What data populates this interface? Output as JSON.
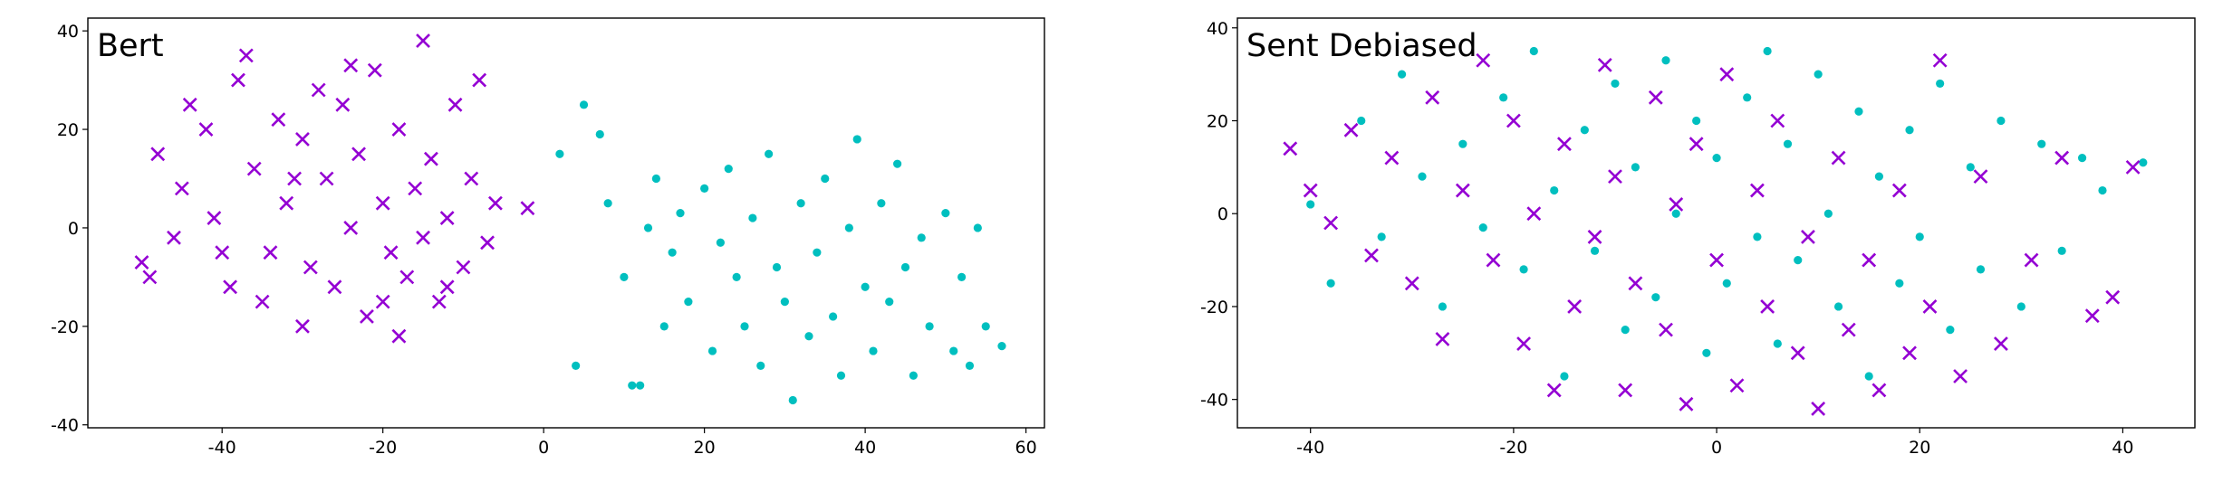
{
  "chart_data": [
    {
      "type": "scatter",
      "title": "Bert",
      "xlim": [
        -56.7,
        62.3
      ],
      "ylim": [
        -40.6,
        42.6
      ],
      "xticks": [
        -40,
        -20,
        0,
        20,
        40,
        60
      ],
      "yticks": [
        -40,
        -20,
        0,
        20,
        40
      ],
      "series": [
        {
          "color": "#9400d3",
          "marker": "x",
          "x": [
            -48,
            -45,
            -42,
            -40,
            -38,
            -36,
            -35,
            -33,
            -32,
            -30,
            -29,
            -28,
            -27,
            -26,
            -25,
            -24,
            -23,
            -22,
            -21,
            -20,
            -19,
            -18,
            -17,
            -16,
            -15,
            -14,
            -13,
            -12,
            -11,
            -10,
            -9,
            -8,
            -7,
            -6,
            -46,
            -44,
            -41,
            -39,
            -37,
            -34,
            -31,
            -30,
            -24,
            -20,
            -18,
            -15,
            -12,
            -50,
            -49,
            -2
          ],
          "y": [
            15,
            8,
            20,
            -5,
            30,
            12,
            -15,
            22,
            5,
            18,
            -8,
            28,
            10,
            -12,
            25,
            0,
            15,
            -18,
            32,
            5,
            -5,
            20,
            -10,
            8,
            -2,
            14,
            -15,
            2,
            25,
            -8,
            10,
            30,
            -3,
            5,
            -2,
            25,
            2,
            -12,
            35,
            -5,
            10,
            -20,
            33,
            -15,
            -22,
            38,
            -12,
            -7,
            -10,
            4
          ]
        },
        {
          "color": "#00bfbf",
          "marker": "o",
          "x": [
            2,
            4,
            5,
            7,
            8,
            10,
            12,
            13,
            14,
            15,
            16,
            17,
            18,
            20,
            21,
            22,
            23,
            24,
            25,
            26,
            27,
            28,
            29,
            30,
            31,
            32,
            33,
            34,
            35,
            36,
            37,
            38,
            39,
            40,
            41,
            42,
            43,
            44,
            45,
            46,
            47,
            48,
            50,
            51,
            52,
            53,
            54,
            55,
            57,
            11
          ],
          "y": [
            15,
            -28,
            25,
            19,
            5,
            -10,
            -32,
            0,
            10,
            -20,
            -5,
            3,
            -15,
            8,
            -25,
            -3,
            12,
            -10,
            -20,
            2,
            -28,
            15,
            -8,
            -15,
            -35,
            5,
            -22,
            -5,
            10,
            -18,
            -30,
            0,
            18,
            -12,
            -25,
            5,
            -15,
            13,
            -8,
            -30,
            -2,
            -20,
            3,
            -25,
            -10,
            -28,
            0,
            -20,
            -24,
            -32
          ]
        }
      ]
    },
    {
      "type": "scatter",
      "title": "Sent Debiased",
      "xlim": [
        -47.2,
        47.1
      ],
      "ylim": [
        -46.1,
        42.1
      ],
      "xticks": [
        -40,
        -20,
        0,
        20,
        40
      ],
      "yticks": [
        -40,
        -20,
        0,
        20,
        40
      ],
      "series": [
        {
          "color": "#00bfbf",
          "marker": "o",
          "x": [
            -40,
            -38,
            -35,
            -33,
            -31,
            -29,
            -27,
            -25,
            -23,
            -21,
            -19,
            -18,
            -16,
            -15,
            -13,
            -12,
            -10,
            -9,
            -8,
            -6,
            -5,
            -4,
            -2,
            -1,
            0,
            1,
            3,
            4,
            5,
            6,
            7,
            8,
            10,
            11,
            12,
            14,
            15,
            16,
            18,
            19,
            20,
            22,
            23,
            25,
            26,
            28,
            30,
            32,
            34,
            36,
            38,
            42
          ],
          "y": [
            2,
            -15,
            20,
            -5,
            30,
            8,
            -20,
            15,
            -3,
            25,
            -12,
            35,
            5,
            -35,
            18,
            -8,
            28,
            -25,
            10,
            -18,
            33,
            0,
            20,
            -30,
            12,
            -15,
            25,
            -5,
            35,
            -28,
            15,
            -10,
            30,
            0,
            -20,
            22,
            -35,
            8,
            -15,
            18,
            -5,
            28,
            -25,
            10,
            -12,
            20,
            -20,
            15,
            -8,
            12,
            5,
            11
          ]
        },
        {
          "color": "#9400d3",
          "marker": "x",
          "x": [
            -42,
            -40,
            -38,
            -36,
            -34,
            -32,
            -30,
            -28,
            -27,
            -25,
            -23,
            -22,
            -20,
            -19,
            -18,
            -16,
            -15,
            -14,
            -12,
            -11,
            -10,
            -9,
            -8,
            -6,
            -5,
            -4,
            -3,
            -2,
            0,
            1,
            2,
            4,
            5,
            6,
            8,
            9,
            10,
            12,
            13,
            15,
            16,
            18,
            19,
            21,
            22,
            24,
            26,
            28,
            31,
            34,
            37,
            39,
            41
          ],
          "y": [
            14,
            5,
            -2,
            18,
            -9,
            12,
            -15,
            25,
            -27,
            5,
            33,
            -10,
            20,
            -28,
            0,
            -38,
            15,
            -20,
            -5,
            32,
            8,
            -38,
            -15,
            25,
            -25,
            2,
            -41,
            15,
            -10,
            30,
            -37,
            5,
            -20,
            20,
            -30,
            -5,
            -42,
            12,
            -25,
            -10,
            -38,
            5,
            -30,
            -20,
            33,
            -35,
            8,
            -28,
            -10,
            12,
            -22,
            -18,
            10
          ]
        }
      ]
    }
  ]
}
